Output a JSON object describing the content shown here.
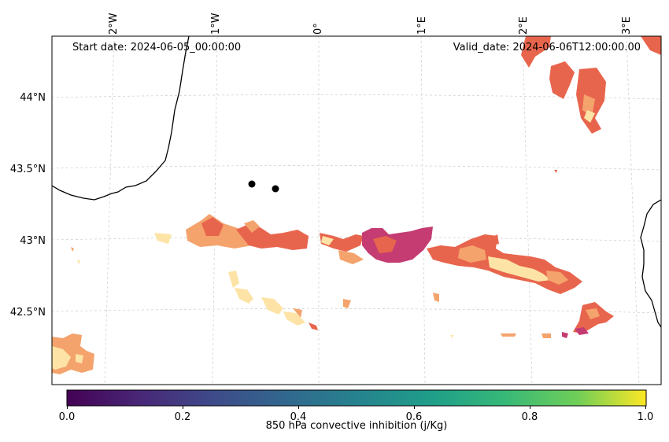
{
  "header": {
    "start_date": "Start date: 2024-06-05_00:00:00",
    "valid_date": "Valid_date: 2024-06-06T12:00:00.00"
  },
  "lon_ticks": [
    "2°W",
    "1°W",
    "0°",
    "1°E",
    "2°E",
    "3°E"
  ],
  "lat_ticks": [
    "44°N",
    "43.5°N",
    "43°N",
    "42.5°N"
  ],
  "colorbar": {
    "label": "850 hPa convective inhibition (j/Kg)",
    "ticks": [
      "0.0",
      "0.2",
      "0.4",
      "0.6",
      "0.8",
      "1.0"
    ],
    "colormap": "viridis",
    "range": [
      0.0,
      1.0
    ]
  },
  "field": {
    "colormap": "magma-like (pink/orange/cream)",
    "colors": [
      "#c43c72",
      "#e8654d",
      "#f4a36d",
      "#fde4a6"
    ]
  },
  "markers": [
    {
      "lon": -0.62,
      "lat": 43.39
    },
    {
      "lon": -0.4,
      "lat": 43.36
    }
  ]
}
